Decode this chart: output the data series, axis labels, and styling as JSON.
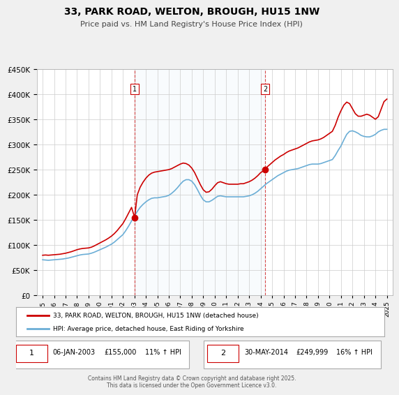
{
  "title": "33, PARK ROAD, WELTON, BROUGH, HU15 1NW",
  "subtitle": "Price paid vs. HM Land Registry's House Price Index (HPI)",
  "legend_line1": "33, PARK ROAD, WELTON, BROUGH, HU15 1NW (detached house)",
  "legend_line2": "HPI: Average price, detached house, East Riding of Yorkshire",
  "footnote": "Contains HM Land Registry data © Crown copyright and database right 2025.\nThis data is licensed under the Open Government Licence v3.0.",
  "sale1_label": "1",
  "sale1_date": "06-JAN-2003",
  "sale1_price": "£155,000",
  "sale1_hpi": "11% ↑ HPI",
  "sale1_year": 2003.02,
  "sale1_value": 155000,
  "sale2_label": "2",
  "sale2_date": "30-MAY-2014",
  "sale2_price": "£249,999",
  "sale2_hpi": "16% ↑ HPI",
  "sale2_year": 2014.41,
  "sale2_value": 249999,
  "hpi_color": "#6baed6",
  "price_color": "#cc0000",
  "sale_dot_color": "#cc0000",
  "vline_color": "#cc0000",
  "background_color": "#f0f0f0",
  "plot_bg_color": "#ffffff",
  "grid_color": "#cccccc",
  "ylim": [
    0,
    450000
  ],
  "yticks": [
    0,
    50000,
    100000,
    150000,
    200000,
    250000,
    300000,
    350000,
    400000,
    450000
  ],
  "xlim_start": 1994.5,
  "xlim_end": 2025.5,
  "hpi_data": [
    [
      1995,
      71000
    ],
    [
      1995.25,
      70500
    ],
    [
      1995.5,
      70000
    ],
    [
      1995.75,
      70500
    ],
    [
      1996,
      71000
    ],
    [
      1996.25,
      71500
    ],
    [
      1996.5,
      72000
    ],
    [
      1996.75,
      72500
    ],
    [
      1997,
      73500
    ],
    [
      1997.25,
      74500
    ],
    [
      1997.5,
      76000
    ],
    [
      1997.75,
      77500
    ],
    [
      1998,
      79000
    ],
    [
      1998.25,
      80500
    ],
    [
      1998.5,
      81500
    ],
    [
      1998.75,
      82000
    ],
    [
      1999,
      82500
    ],
    [
      1999.25,
      84000
    ],
    [
      1999.5,
      86000
    ],
    [
      1999.75,
      88500
    ],
    [
      2000,
      91000
    ],
    [
      2000.25,
      93500
    ],
    [
      2000.5,
      96000
    ],
    [
      2000.75,
      99000
    ],
    [
      2001,
      102000
    ],
    [
      2001.25,
      106000
    ],
    [
      2001.5,
      111000
    ],
    [
      2001.75,
      116000
    ],
    [
      2002,
      121000
    ],
    [
      2002.25,
      129000
    ],
    [
      2002.5,
      138000
    ],
    [
      2002.75,
      148000
    ],
    [
      2003,
      158000
    ],
    [
      2003.25,
      167000
    ],
    [
      2003.5,
      175000
    ],
    [
      2003.75,
      181000
    ],
    [
      2004,
      186000
    ],
    [
      2004.25,
      190000
    ],
    [
      2004.5,
      193000
    ],
    [
      2004.75,
      194000
    ],
    [
      2005,
      194000
    ],
    [
      2005.25,
      195000
    ],
    [
      2005.5,
      196000
    ],
    [
      2005.75,
      197000
    ],
    [
      2006,
      199000
    ],
    [
      2006.25,
      203000
    ],
    [
      2006.5,
      208000
    ],
    [
      2006.75,
      214000
    ],
    [
      2007,
      221000
    ],
    [
      2007.25,
      227000
    ],
    [
      2007.5,
      230000
    ],
    [
      2007.75,
      230000
    ],
    [
      2008,
      227000
    ],
    [
      2008.25,
      220000
    ],
    [
      2008.5,
      210000
    ],
    [
      2008.75,
      199000
    ],
    [
      2009,
      190000
    ],
    [
      2009.25,
      186000
    ],
    [
      2009.5,
      186000
    ],
    [
      2009.75,
      189000
    ],
    [
      2010,
      193000
    ],
    [
      2010.25,
      197000
    ],
    [
      2010.5,
      198000
    ],
    [
      2010.75,
      197000
    ],
    [
      2011,
      196000
    ],
    [
      2011.25,
      196000
    ],
    [
      2011.5,
      196000
    ],
    [
      2011.75,
      196000
    ],
    [
      2012,
      196000
    ],
    [
      2012.25,
      196000
    ],
    [
      2012.5,
      196000
    ],
    [
      2012.75,
      197000
    ],
    [
      2013,
      198000
    ],
    [
      2013.25,
      200000
    ],
    [
      2013.5,
      203000
    ],
    [
      2013.75,
      207000
    ],
    [
      2014,
      212000
    ],
    [
      2014.25,
      217000
    ],
    [
      2014.5,
      222000
    ],
    [
      2014.75,
      226000
    ],
    [
      2015,
      230000
    ],
    [
      2015.25,
      234000
    ],
    [
      2015.5,
      238000
    ],
    [
      2015.75,
      241000
    ],
    [
      2016,
      244000
    ],
    [
      2016.25,
      247000
    ],
    [
      2016.5,
      249000
    ],
    [
      2016.75,
      250000
    ],
    [
      2017,
      251000
    ],
    [
      2017.25,
      252000
    ],
    [
      2017.5,
      254000
    ],
    [
      2017.75,
      256000
    ],
    [
      2018,
      258000
    ],
    [
      2018.25,
      260000
    ],
    [
      2018.5,
      261000
    ],
    [
      2018.75,
      261000
    ],
    [
      2019,
      261000
    ],
    [
      2019.25,
      262000
    ],
    [
      2019.5,
      264000
    ],
    [
      2019.75,
      266000
    ],
    [
      2020,
      268000
    ],
    [
      2020.25,
      270000
    ],
    [
      2020.5,
      278000
    ],
    [
      2020.75,
      288000
    ],
    [
      2021,
      297000
    ],
    [
      2021.25,
      309000
    ],
    [
      2021.5,
      320000
    ],
    [
      2021.75,
      326000
    ],
    [
      2022,
      327000
    ],
    [
      2022.25,
      325000
    ],
    [
      2022.5,
      322000
    ],
    [
      2022.75,
      318000
    ],
    [
      2023,
      316000
    ],
    [
      2023.25,
      315000
    ],
    [
      2023.5,
      315000
    ],
    [
      2023.75,
      317000
    ],
    [
      2024,
      320000
    ],
    [
      2024.25,
      325000
    ],
    [
      2024.5,
      328000
    ],
    [
      2024.75,
      330000
    ],
    [
      2025,
      330000
    ]
  ],
  "price_data": [
    [
      1995,
      80000
    ],
    [
      1995.25,
      80500
    ],
    [
      1995.5,
      80000
    ],
    [
      1995.75,
      80500
    ],
    [
      1996,
      81000
    ],
    [
      1996.25,
      81500
    ],
    [
      1996.5,
      82000
    ],
    [
      1996.75,
      83000
    ],
    [
      1997,
      84000
    ],
    [
      1997.25,
      85500
    ],
    [
      1997.5,
      87000
    ],
    [
      1997.75,
      89000
    ],
    [
      1998,
      91000
    ],
    [
      1998.25,
      92500
    ],
    [
      1998.5,
      93500
    ],
    [
      1998.75,
      94000
    ],
    [
      1999,
      94500
    ],
    [
      1999.25,
      96000
    ],
    [
      1999.5,
      98500
    ],
    [
      1999.75,
      101500
    ],
    [
      2000,
      104500
    ],
    [
      2000.25,
      107500
    ],
    [
      2000.5,
      110500
    ],
    [
      2000.75,
      114000
    ],
    [
      2001,
      118000
    ],
    [
      2001.25,
      123000
    ],
    [
      2001.5,
      129000
    ],
    [
      2001.75,
      136000
    ],
    [
      2002,
      143000
    ],
    [
      2002.25,
      153000
    ],
    [
      2002.5,
      164000
    ],
    [
      2002.75,
      175000
    ],
    [
      2003.02,
      155000
    ],
    [
      2003.25,
      200000
    ],
    [
      2003.5,
      215000
    ],
    [
      2003.75,
      225000
    ],
    [
      2004,
      233000
    ],
    [
      2004.25,
      239000
    ],
    [
      2004.5,
      243000
    ],
    [
      2004.75,
      245000
    ],
    [
      2005,
      246000
    ],
    [
      2005.25,
      247000
    ],
    [
      2005.5,
      248000
    ],
    [
      2005.75,
      249000
    ],
    [
      2006,
      250000
    ],
    [
      2006.25,
      252000
    ],
    [
      2006.5,
      255000
    ],
    [
      2006.75,
      258000
    ],
    [
      2007,
      261000
    ],
    [
      2007.25,
      263000
    ],
    [
      2007.5,
      262000
    ],
    [
      2007.75,
      259000
    ],
    [
      2008,
      253000
    ],
    [
      2008.25,
      244000
    ],
    [
      2008.5,
      232000
    ],
    [
      2008.75,
      220000
    ],
    [
      2009,
      210000
    ],
    [
      2009.25,
      205000
    ],
    [
      2009.5,
      206000
    ],
    [
      2009.75,
      211000
    ],
    [
      2010,
      218000
    ],
    [
      2010.25,
      224000
    ],
    [
      2010.5,
      226000
    ],
    [
      2010.75,
      224000
    ],
    [
      2011,
      222000
    ],
    [
      2011.25,
      221000
    ],
    [
      2011.5,
      221000
    ],
    [
      2011.75,
      221000
    ],
    [
      2012,
      221000
    ],
    [
      2012.25,
      222000
    ],
    [
      2012.5,
      222000
    ],
    [
      2012.75,
      224000
    ],
    [
      2013,
      226000
    ],
    [
      2013.25,
      229000
    ],
    [
      2013.5,
      233000
    ],
    [
      2013.75,
      238000
    ],
    [
      2014,
      244000
    ],
    [
      2014.41,
      249999
    ],
    [
      2014.5,
      254000
    ],
    [
      2014.75,
      259000
    ],
    [
      2015,
      264000
    ],
    [
      2015.25,
      269000
    ],
    [
      2015.5,
      273000
    ],
    [
      2015.75,
      277000
    ],
    [
      2016,
      280000
    ],
    [
      2016.25,
      284000
    ],
    [
      2016.5,
      287000
    ],
    [
      2016.75,
      289000
    ],
    [
      2017,
      291000
    ],
    [
      2017.25,
      293000
    ],
    [
      2017.5,
      296000
    ],
    [
      2017.75,
      299000
    ],
    [
      2018,
      302000
    ],
    [
      2018.25,
      305000
    ],
    [
      2018.5,
      307000
    ],
    [
      2018.75,
      308000
    ],
    [
      2019,
      309000
    ],
    [
      2019.25,
      311000
    ],
    [
      2019.5,
      314000
    ],
    [
      2019.75,
      318000
    ],
    [
      2020,
      322000
    ],
    [
      2020.25,
      326000
    ],
    [
      2020.5,
      338000
    ],
    [
      2020.75,
      354000
    ],
    [
      2021,
      367000
    ],
    [
      2021.25,
      378000
    ],
    [
      2021.5,
      384000
    ],
    [
      2021.75,
      381000
    ],
    [
      2022,
      371000
    ],
    [
      2022.25,
      361000
    ],
    [
      2022.5,
      356000
    ],
    [
      2022.75,
      356000
    ],
    [
      2023,
      358000
    ],
    [
      2023.25,
      360000
    ],
    [
      2023.5,
      358000
    ],
    [
      2023.75,
      354000
    ],
    [
      2024,
      350000
    ],
    [
      2024.25,
      355000
    ],
    [
      2024.5,
      370000
    ],
    [
      2024.75,
      385000
    ],
    [
      2025,
      390000
    ]
  ]
}
